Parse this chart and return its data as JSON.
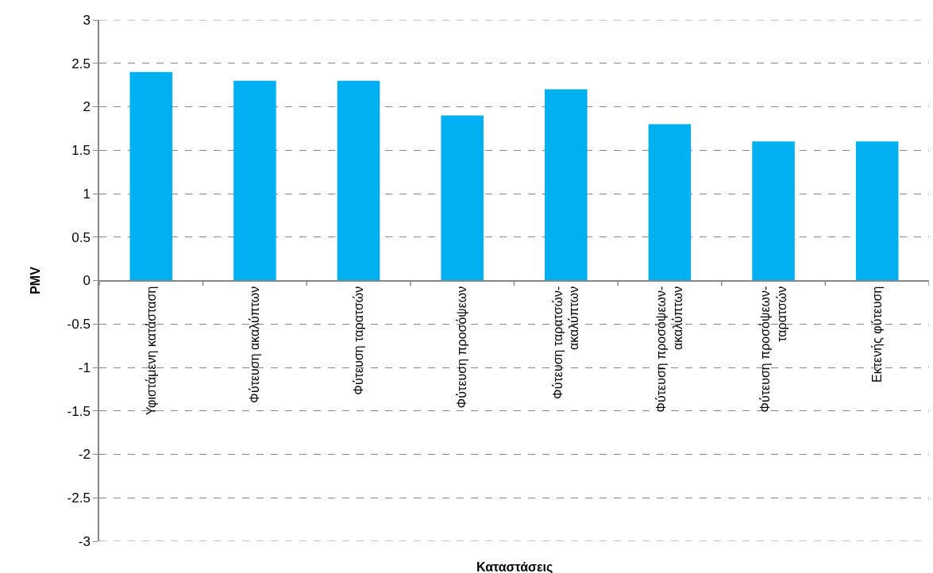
{
  "chart_data": {
    "type": "bar",
    "xlabel": "Καταστάσεις",
    "ylabel": "PMV",
    "categories": [
      "Υφιστάμενη κατάσταση",
      "Φύτευση ακαλύπτων",
      "Φύτευση ταρατσών",
      "Φύτευση προσόψεων",
      "Φύτευση ταρατσών-ακαλύπτων",
      "Φύτευση προσόψεων-ακαλύπτων",
      "Φύτευση προσόψεων-ταρατσών",
      "Εκτενής φύτευση"
    ],
    "values": [
      2.4,
      2.3,
      2.3,
      1.9,
      2.2,
      1.8,
      1.6,
      1.6
    ],
    "color": "#00b0f0",
    "ylim": [
      -3,
      3
    ],
    "yticks": [
      -3,
      -2.5,
      -2,
      -1.5,
      -1,
      -0.5,
      0,
      0.5,
      1,
      1.5,
      2,
      2.5,
      3
    ],
    "grid": "y"
  }
}
